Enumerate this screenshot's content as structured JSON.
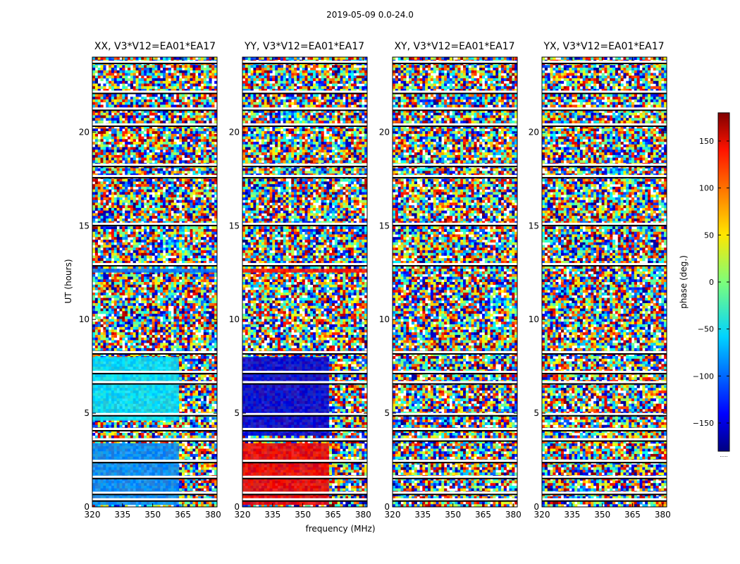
{
  "figure_title": "2019-05-09 0.0-24.0",
  "chart_data": {
    "type": "heatmap",
    "title": "2019-05-09 0.0-24.0",
    "xlabel": "frequency (MHz)",
    "ylabel": "UT (hours)",
    "xlim": [
      320,
      382
    ],
    "ylim": [
      0,
      24
    ],
    "xticks": [
      320,
      335,
      350,
      365,
      380
    ],
    "yticks": [
      0,
      5,
      10,
      15,
      20
    ],
    "colorbar": {
      "label": "phase (deg.)",
      "range": [
        -180,
        180
      ],
      "ticks": [
        -150,
        -100,
        -50,
        0,
        50,
        100,
        150
      ],
      "tick_labels": [
        "−150",
        "−100",
        "−50",
        "0",
        "50",
        "100",
        "150"
      ],
      "colormap": "jet",
      "under_label": "....."
    },
    "panels": [
      {
        "title": "XX, V3*V12=EA01*EA17",
        "polarization": "XX"
      },
      {
        "title": "YY, V3*V12=EA01*EA17",
        "polarization": "YY"
      },
      {
        "title": "XY, V3*V12=EA01*EA17",
        "polarization": "XY"
      },
      {
        "title": "YX, V3*V12=EA01*EA17",
        "polarization": "YX"
      }
    ],
    "flagged_ut_hours": [
      0.35,
      0.7,
      1.55,
      2.4,
      3.55,
      4.1,
      4.9,
      6.6,
      7.15,
      8.2,
      12.9,
      15.05,
      17.6,
      18.2,
      20.35,
      21.2,
      22.1,
      23.7
    ],
    "coherent_segments": [
      {
        "polarization": "XX",
        "ut_from": 4.6,
        "ut_to": 8.0,
        "freq_to": 363,
        "phase_deg": -55
      },
      {
        "polarization": "XX",
        "ut_from": 0.1,
        "ut_to": 3.4,
        "freq_to": 363,
        "phase_deg": -85
      },
      {
        "polarization": "XX",
        "ut_from": 12.5,
        "ut_to": 12.7,
        "freq_to": 382,
        "phase_deg": -95
      },
      {
        "polarization": "YY",
        "ut_from": 3.8,
        "ut_to": 8.0,
        "freq_to": 363,
        "phase_deg": -150
      },
      {
        "polarization": "YY",
        "ut_from": 0.1,
        "ut_to": 3.4,
        "freq_to": 363,
        "phase_deg": 140
      },
      {
        "polarization": "YY",
        "ut_from": 12.5,
        "ut_to": 12.7,
        "freq_to": 382,
        "phase_deg": 130
      }
    ]
  }
}
